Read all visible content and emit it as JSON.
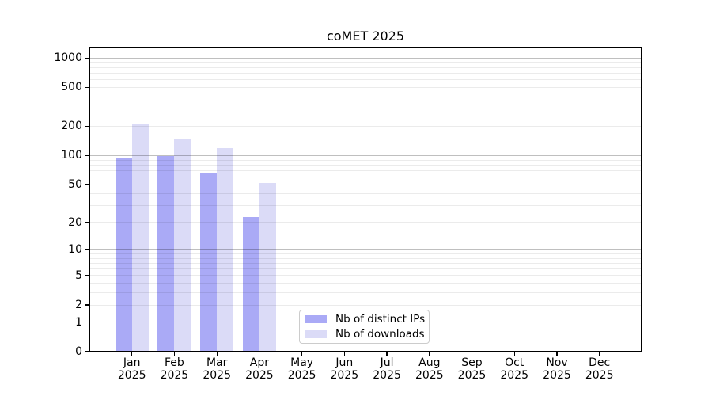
{
  "chart_data": {
    "type": "bar",
    "title": "coMET 2025",
    "xlabel": "",
    "ylabel": "",
    "y_scale": "log10(value+1)",
    "y_ticks": [
      0,
      1,
      2,
      5,
      10,
      20,
      50,
      100,
      200,
      500,
      1000
    ],
    "ylim": [
      0,
      1300
    ],
    "grid": "horizontal major (decades, gray) + minor (faint), drawn over bars",
    "legend_position": "inside lower-center-left",
    "categories": [
      {
        "month": "Jan",
        "year": "2025"
      },
      {
        "month": "Feb",
        "year": "2025"
      },
      {
        "month": "Mar",
        "year": "2025"
      },
      {
        "month": "Apr",
        "year": "2025"
      },
      {
        "month": "May",
        "year": "2025"
      },
      {
        "month": "Jun",
        "year": "2025"
      },
      {
        "month": "Jul",
        "year": "2025"
      },
      {
        "month": "Aug",
        "year": "2025"
      },
      {
        "month": "Sep",
        "year": "2025"
      },
      {
        "month": "Oct",
        "year": "2025"
      },
      {
        "month": "Nov",
        "year": "2025"
      },
      {
        "month": "Dec",
        "year": "2025"
      }
    ],
    "series": [
      {
        "name": "Nb of distinct IPs",
        "color": "#aaaaf6",
        "values": [
          93,
          98,
          66,
          23,
          0,
          0,
          0,
          0,
          0,
          0,
          0,
          0
        ]
      },
      {
        "name": "Nb of downloads",
        "color": "#dbdbf7",
        "values": [
          210,
          150,
          120,
          52,
          0,
          0,
          0,
          0,
          0,
          0,
          0,
          0
        ]
      }
    ]
  },
  "colors": {
    "background": "#ffffff",
    "axis": "#000000",
    "grid_major": "rgba(0,0,0,0.25)",
    "grid_minor": "rgba(0,0,0,0.08)",
    "distinct_ips_bar": "#aaaaf6",
    "downloads_bar": "#dbdbf7",
    "legend_border": "#cccccc"
  }
}
